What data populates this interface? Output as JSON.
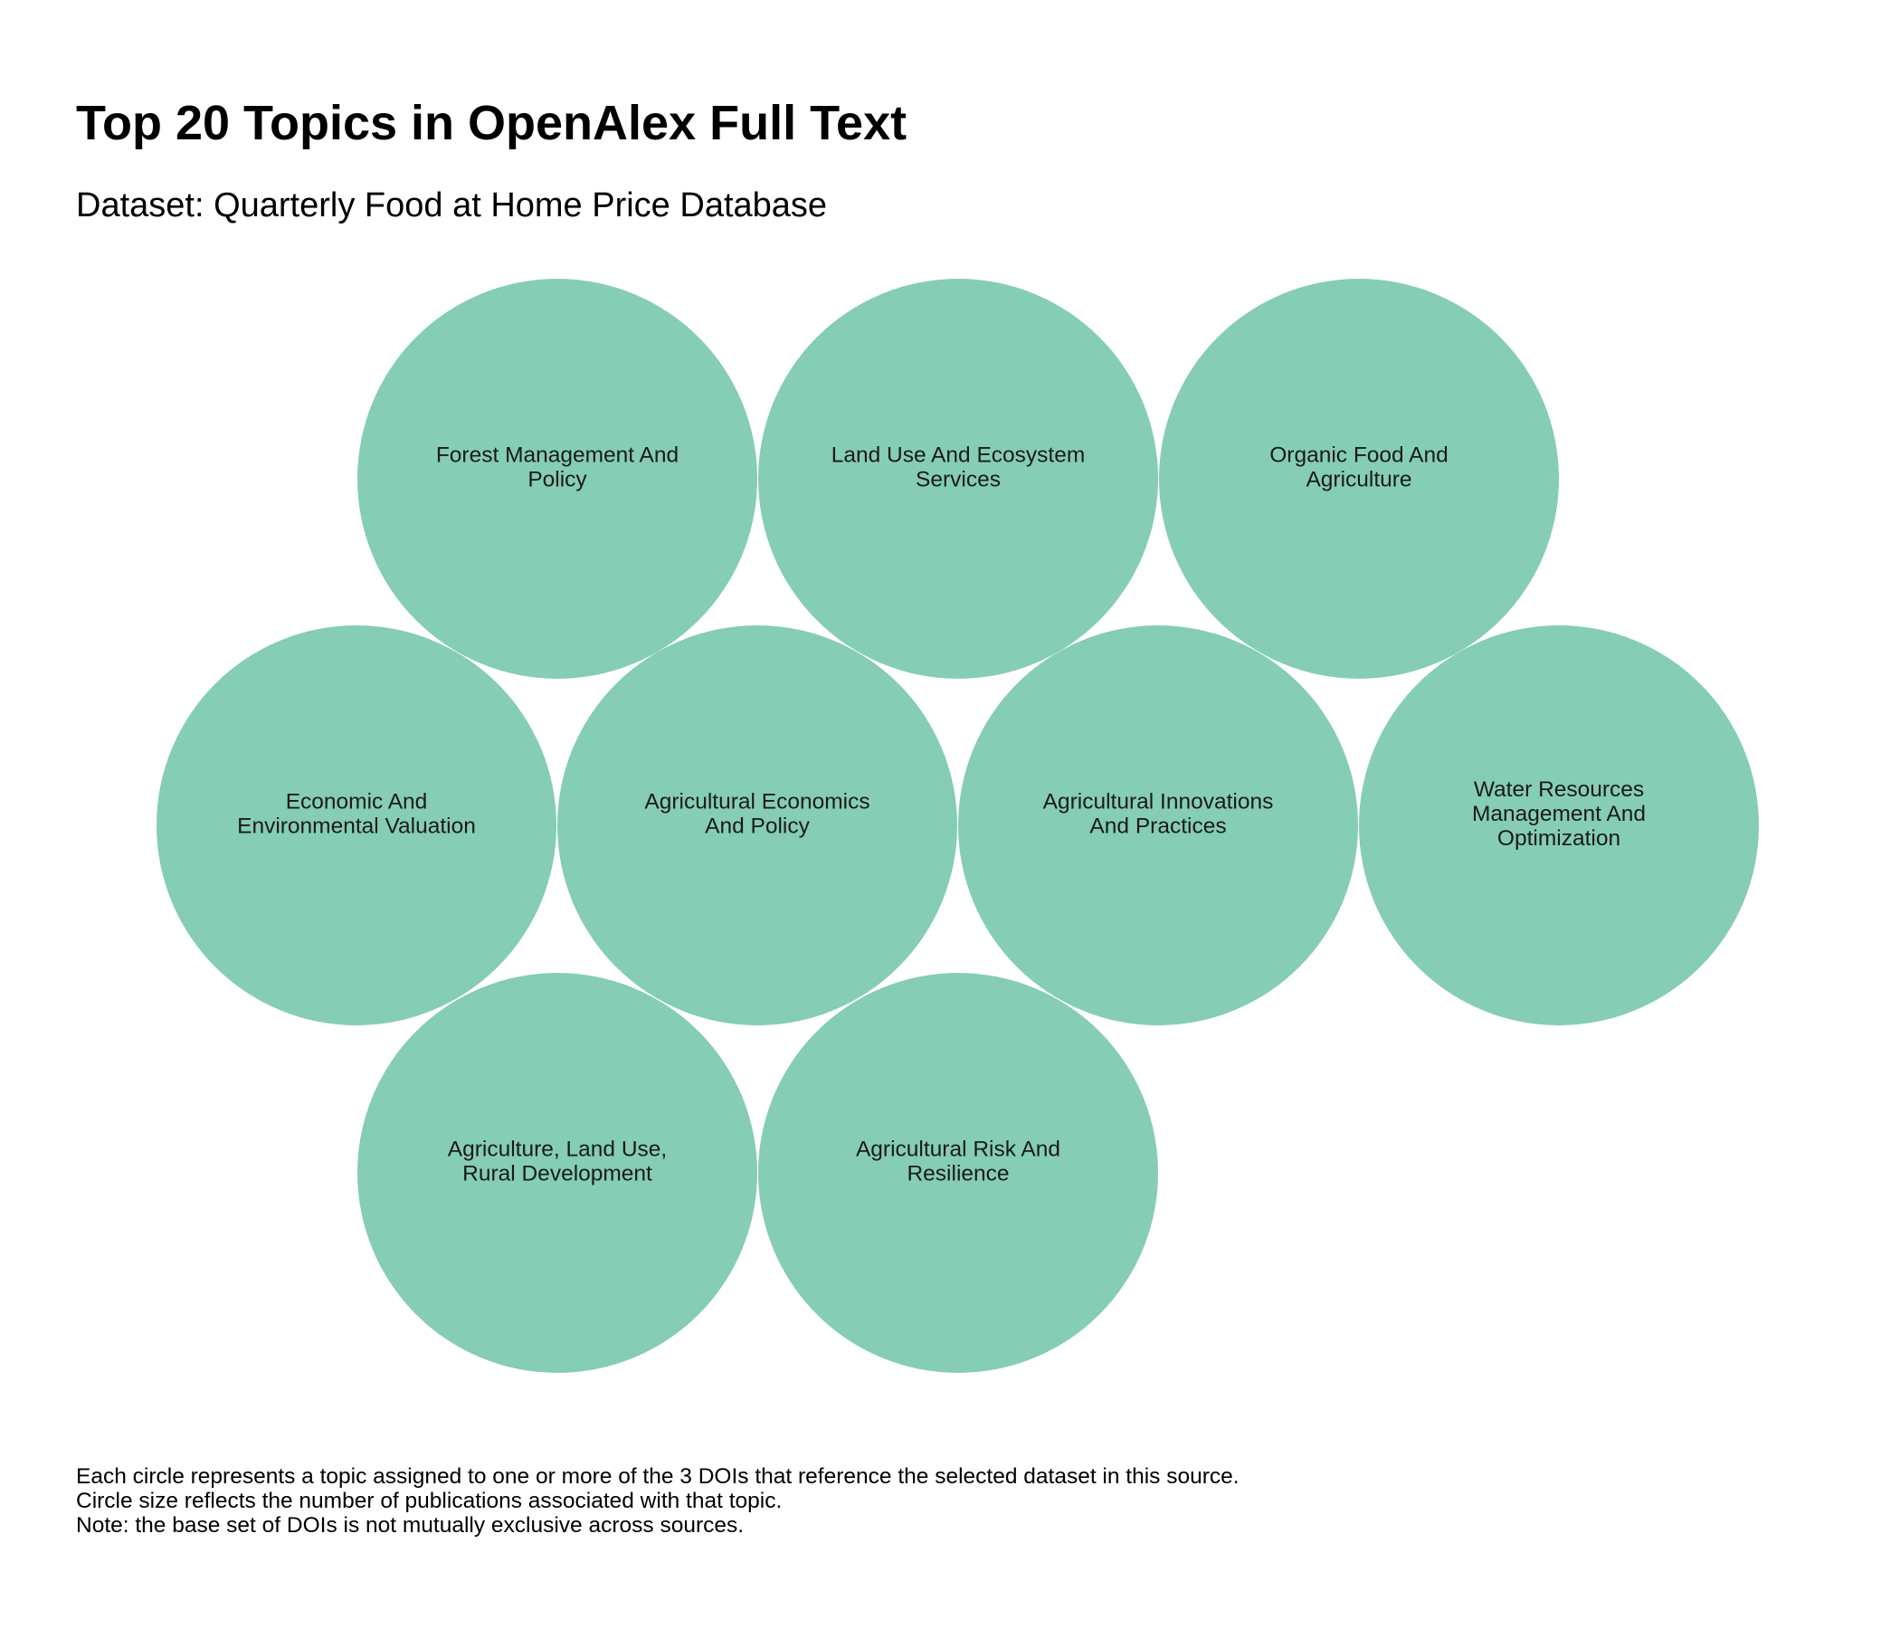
{
  "header": {
    "title": "Top 20 Topics in OpenAlex Full Text",
    "subtitle": "Dataset: Quarterly Food at Home Price Database"
  },
  "chart_data": {
    "type": "bubble",
    "title": "Top 20 Topics in OpenAlex Full Text",
    "subtitle": "Dataset: Quarterly Food at Home Price Database",
    "bubble_color": "#85CDB5",
    "size_encoding": "number of publications",
    "equal_sizes": true,
    "topics": [
      {
        "lines": [
          "Forest Management And",
          "Policy"
        ]
      },
      {
        "lines": [
          "Land Use And Ecosystem",
          "Services"
        ]
      },
      {
        "lines": [
          "Organic Food And",
          "Agriculture"
        ]
      },
      {
        "lines": [
          "Economic And",
          "Environmental Valuation"
        ]
      },
      {
        "lines": [
          "Agricultural Economics",
          "And Policy"
        ]
      },
      {
        "lines": [
          "Agricultural Innovations",
          "And Practices"
        ]
      },
      {
        "lines": [
          "Water Resources",
          "Management And",
          "Optimization"
        ]
      },
      {
        "lines": [
          "Agriculture, Land Use,",
          "Rural Development"
        ]
      },
      {
        "lines": [
          "Agricultural Risk And",
          "Resilience"
        ]
      }
    ]
  },
  "footnote": {
    "line1": "Each circle represents a topic assigned to one or more of the 3 DOIs that reference the selected dataset in this source.",
    "line2": "Circle size reflects the number of publications associated with that topic.",
    "line3": "Note: the base set of DOIs is not mutually exclusive across sources."
  }
}
